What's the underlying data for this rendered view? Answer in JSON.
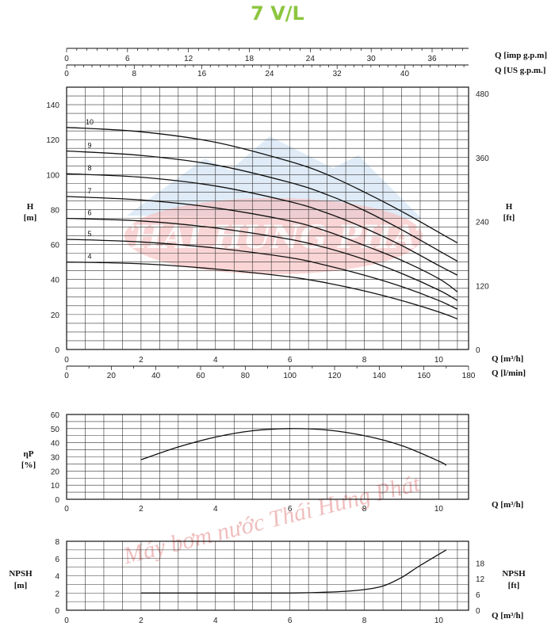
{
  "title": "7 V/L",
  "colors": {
    "title": "#8cc63f",
    "curve": "#111111",
    "grid": "#333333",
    "watermark_red": "#e05a5a",
    "watermark_blue": "#9dc3e6"
  },
  "watermark": {
    "logo_text": "THAI HUNG PHAT",
    "text": "Máy bơm nước Thái Hưng Phát"
  },
  "chart_data": [
    {
      "type": "line",
      "name": "head-curves",
      "xlabel": "Q [m³/h]",
      "xlabel_secondary": "Q [l/min]",
      "top_axis_1_label": "Q [imp g.p.m]",
      "top_axis_2_label": "Q [US g.p.m.]",
      "ylabel": "H [m]",
      "ylabel_right": "H [ft]",
      "xlim": [
        0,
        10.8
      ],
      "ylim": [
        0,
        145
      ],
      "grid": true,
      "x_ticks": [
        "0",
        "2",
        "4",
        "6",
        "8",
        "10"
      ],
      "x_ticks_lmin": [
        "0",
        "20",
        "40",
        "60",
        "80",
        "100",
        "120",
        "140",
        "160",
        "180"
      ],
      "x_ticks_imp": [
        "0",
        "6",
        "12",
        "18",
        "24",
        "30",
        "36"
      ],
      "x_ticks_us": [
        "0",
        "8",
        "16",
        "24",
        "32",
        "40"
      ],
      "y_ticks": [
        "0",
        "20",
        "40",
        "60",
        "80",
        "100",
        "120",
        "140"
      ],
      "y_ticks_ft": [
        "0",
        "120",
        "240",
        "360",
        "480"
      ],
      "series": [
        {
          "name": "10",
          "x": [
            0,
            2,
            4,
            6,
            7,
            8,
            9,
            10,
            10.5
          ],
          "y": [
            127,
            124.5,
            118.5,
            107.5,
            100,
            90,
            79,
            67,
            61
          ]
        },
        {
          "name": "9",
          "x": [
            0,
            2,
            4,
            6,
            7,
            8,
            9,
            10,
            10.5
          ],
          "y": [
            113.5,
            111,
            105.5,
            95.5,
            88.5,
            79.5,
            68.5,
            56.5,
            50.5
          ]
        },
        {
          "name": "8",
          "x": [
            0,
            2,
            4,
            6,
            7,
            8,
            9,
            10,
            10.5
          ],
          "y": [
            100.5,
            98.5,
            93.5,
            84.5,
            78,
            69.5,
            59.5,
            48,
            42.5
          ]
        },
        {
          "name": "7",
          "x": [
            0,
            2,
            4,
            6,
            7,
            8,
            9,
            10,
            10.5
          ],
          "y": [
            87.5,
            85.5,
            81,
            73.5,
            67.5,
            59.5,
            51,
            40.5,
            33
          ]
        },
        {
          "name": "6",
          "x": [
            0,
            2,
            4,
            6,
            7,
            8,
            9,
            10,
            10.5
          ],
          "y": [
            75,
            73.5,
            69.5,
            63,
            58,
            51.5,
            43.5,
            34,
            28
          ]
        },
        {
          "name": "5",
          "x": [
            0,
            2,
            4,
            6,
            7,
            8,
            9,
            10,
            10.5
          ],
          "y": [
            63,
            61.5,
            58,
            52.5,
            48,
            42.5,
            36,
            28,
            23
          ]
        },
        {
          "name": "4",
          "x": [
            0,
            2,
            4,
            6,
            7,
            8,
            9,
            10,
            10.5
          ],
          "y": [
            50,
            49,
            46,
            41.5,
            38,
            33.5,
            28,
            21.5,
            17.5
          ]
        }
      ]
    },
    {
      "type": "line",
      "name": "efficiency",
      "xlabel": "Q [m³/h]",
      "ylabel": "ηP [%]",
      "xlim": [
        0,
        10.8
      ],
      "ylim": [
        0,
        60
      ],
      "grid": true,
      "x_ticks": [
        "0",
        "2",
        "4",
        "6",
        "8",
        "10"
      ],
      "y_ticks": [
        "0",
        "10",
        "20",
        "30",
        "40",
        "50",
        "60"
      ],
      "series": [
        {
          "name": "",
          "x": [
            2,
            3,
            4,
            5,
            6,
            7,
            8,
            9,
            10,
            10.2
          ],
          "y": [
            28,
            37,
            44,
            48.5,
            50,
            49,
            45,
            38,
            27,
            24
          ]
        }
      ]
    },
    {
      "type": "line",
      "name": "npsh",
      "xlabel": "Q [m³/h]",
      "ylabel": "NPSH [m]",
      "ylabel_right": "NPSH [ft]",
      "xlim": [
        0,
        10.8
      ],
      "ylim": [
        0,
        8
      ],
      "grid": true,
      "x_ticks": [
        "0",
        "2",
        "4",
        "6",
        "8",
        "10"
      ],
      "y_ticks": [
        "0",
        "2",
        "4",
        "6",
        "8"
      ],
      "y_ticks_ft": [
        "0",
        "6",
        "12",
        "18"
      ],
      "series": [
        {
          "name": "",
          "x": [
            2,
            4,
            6,
            7,
            7.5,
            8,
            8.5,
            9,
            9.5,
            10.2
          ],
          "y": [
            2,
            2,
            2,
            2.1,
            2.2,
            2.4,
            2.8,
            3.8,
            5.2,
            7
          ]
        }
      ]
    }
  ]
}
